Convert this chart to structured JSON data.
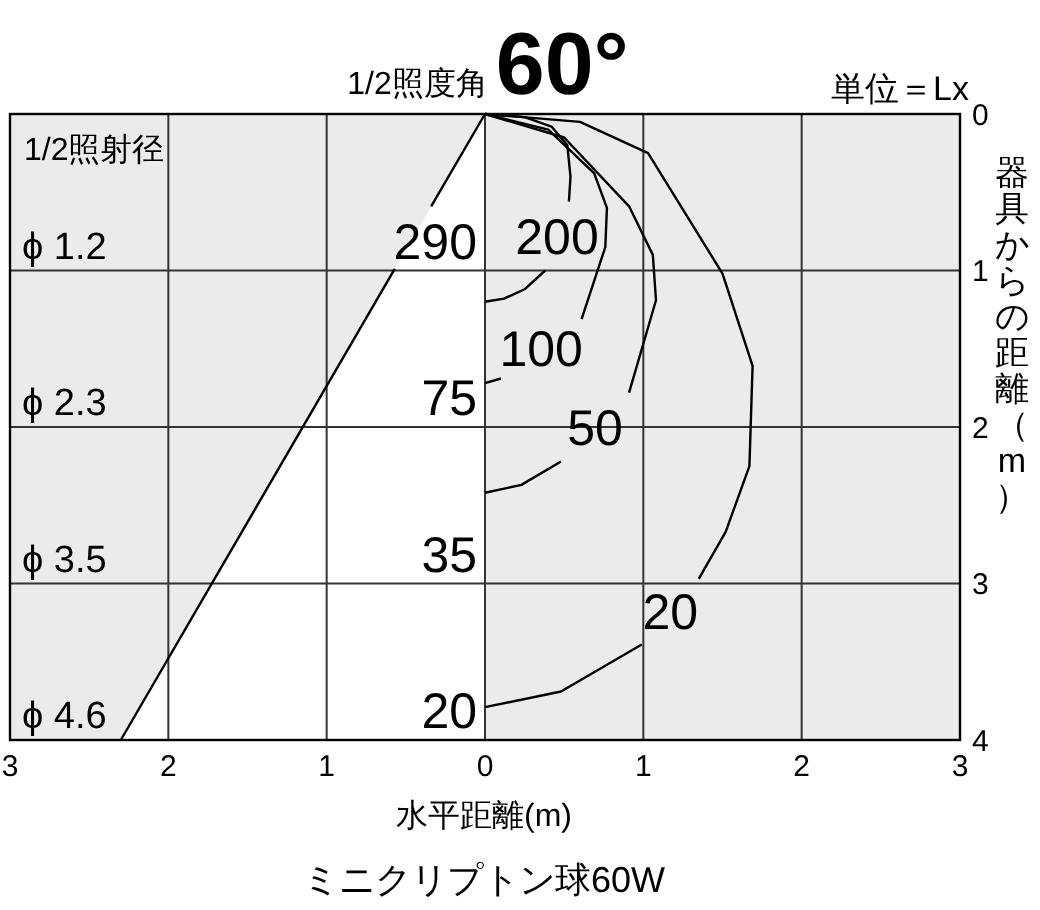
{
  "chart_data": {
    "type": "line",
    "title": "1/2照度角",
    "subtitle": "60°",
    "xlabel": "水平距離(m)",
    "ylabel": "器具からの距離（m）",
    "xlim": [
      -3,
      3
    ],
    "xticks": [
      {
        "value": -3,
        "label": "3"
      },
      {
        "value": -2,
        "label": "2"
      },
      {
        "value": -1,
        "label": "1"
      },
      0,
      1,
      2,
      3
    ],
    "ylim": [
      4,
      0
    ],
    "yticks": [
      0,
      1,
      2,
      3,
      4
    ],
    "grid": true,
    "marker": "none",
    "line_style": "solid",
    "series": [
      {
        "color": "#000000",
        "x": [
          0,
          -0.34,
          null,
          -0.57,
          -2.3
        ],
        "values": [
          0,
          0.59,
          null,
          0.99,
          4
        ]
      },
      {
        "name": "200",
        "color": "#000000",
        "x": [
          0,
          0.25,
          0.42,
          0.52,
          0.54,
          0.53,
          null,
          0.38,
          0.25,
          0.12,
          0
        ],
        "values": [
          0,
          0.02,
          0.08,
          0.2,
          0.4,
          0.56,
          null,
          1.0,
          1.12,
          1.18,
          1.2
        ]
      },
      {
        "name": "100",
        "color": "#000000",
        "x": [
          0,
          0.4,
          0.69,
          0.77,
          0.76,
          0.61,
          null,
          0.1,
          0
        ],
        "values": [
          0,
          0.1,
          0.38,
          0.6,
          0.85,
          1.31,
          null,
          1.69,
          1.72
        ]
      },
      {
        "name": "50",
        "color": "#000000",
        "x": [
          0,
          0.5,
          0.91,
          1.06,
          1.08,
          0.91,
          null,
          0.48,
          0.23,
          0
        ],
        "values": [
          0,
          0.15,
          0.59,
          0.9,
          1.19,
          1.78,
          null,
          2.22,
          2.37,
          2.42
        ]
      },
      {
        "name": "20",
        "color": "#000000",
        "x": [
          0,
          0.6,
          1.03,
          1.5,
          1.69,
          1.67,
          1.52,
          1.35,
          null,
          0.99,
          0.48,
          0
        ],
        "values": [
          0,
          0.05,
          0.25,
          1.02,
          1.61,
          2.25,
          2.67,
          2.97,
          null,
          3.39,
          3.69,
          3.79
        ]
      }
    ],
    "annotations": [
      "単位＝Lx",
      "1/2照射径",
      "ミニクリプトン球60W",
      "ϕ 1.2",
      "ϕ 2.3",
      "ϕ 3.5",
      "ϕ 4.6",
      "290",
      "75",
      "35",
      "20"
    ]
  }
}
